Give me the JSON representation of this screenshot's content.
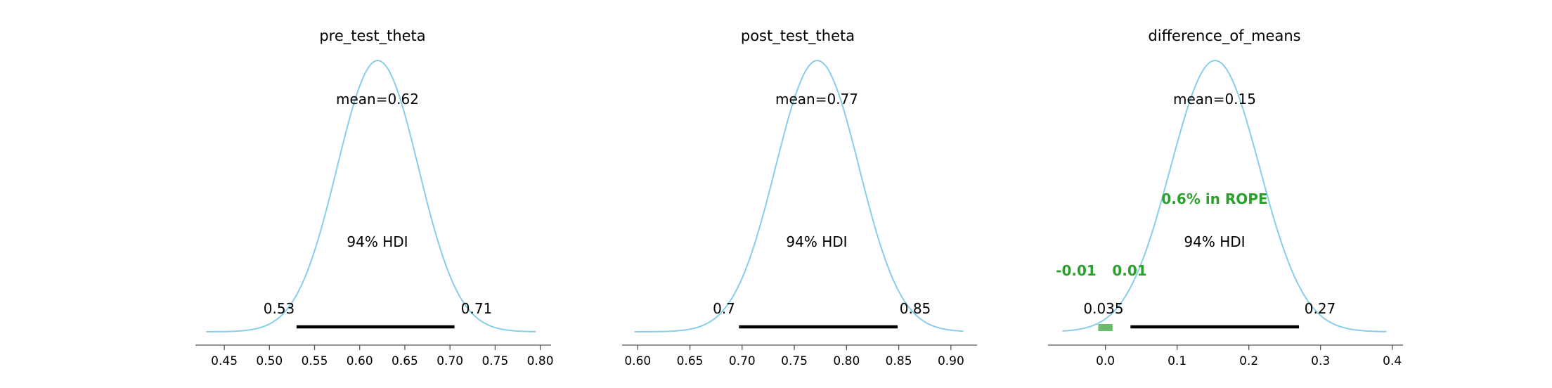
{
  "colors": {
    "kde": "#87ceeb",
    "hdi": "#000000",
    "rope": "#2ca02c",
    "axis": "#555555",
    "text": "#000000"
  },
  "chart_data": [
    {
      "type": "line",
      "title": "pre_test_theta",
      "mean_label": "mean=0.62",
      "hdi_label": "94% HDI",
      "hdi": [
        0.53,
        0.705
      ],
      "hdi_low_label": "0.53",
      "hdi_high_label": "0.71",
      "xlim": [
        0.418,
        0.812
      ],
      "xticks": [
        0.45,
        0.5,
        0.55,
        0.6,
        0.65,
        0.7,
        0.75,
        0.8
      ],
      "xtick_labels": [
        "0.45",
        "0.50",
        "0.55",
        "0.60",
        "0.65",
        "0.70",
        "0.75",
        "0.80"
      ],
      "mean": 0.62,
      "sd": 0.045,
      "density_range": [
        0.43,
        0.795
      ],
      "rope": null,
      "rope_label": "",
      "rope_low_label": "",
      "rope_high_label": ""
    },
    {
      "type": "line",
      "title": "post_test_theta",
      "mean_label": "mean=0.77",
      "hdi_label": "94% HDI",
      "hdi": [
        0.697,
        0.849
      ],
      "hdi_low_label": "0.7",
      "hdi_high_label": "0.85",
      "xlim": [
        0.585,
        0.925
      ],
      "xticks": [
        0.6,
        0.65,
        0.7,
        0.75,
        0.8,
        0.85,
        0.9
      ],
      "xtick_labels": [
        "0.60",
        "0.65",
        "0.70",
        "0.75",
        "0.80",
        "0.85",
        "0.90"
      ],
      "mean": 0.772,
      "sd": 0.04,
      "density_range": [
        0.597,
        0.912
      ],
      "rope": null,
      "rope_label": "",
      "rope_low_label": "",
      "rope_high_label": ""
    },
    {
      "type": "line",
      "title": "difference_of_means",
      "mean_label": "mean=0.15",
      "hdi_label": "94% HDI",
      "hdi": [
        0.035,
        0.27
      ],
      "hdi_low_label": "0.035",
      "hdi_high_label": "0.27",
      "xlim": [
        -0.08,
        0.415
      ],
      "xticks": [
        0.0,
        0.1,
        0.2,
        0.3,
        0.4
      ],
      "xtick_labels": [
        "0.0",
        "0.1",
        "0.2",
        "0.3",
        "0.4"
      ],
      "mean": 0.153,
      "sd": 0.062,
      "density_range": [
        -0.06,
        0.392
      ],
      "rope": [
        -0.01,
        0.01
      ],
      "rope_label": "0.6% in ROPE",
      "rope_low_label": "-0.01",
      "rope_high_label": "0.01"
    }
  ]
}
